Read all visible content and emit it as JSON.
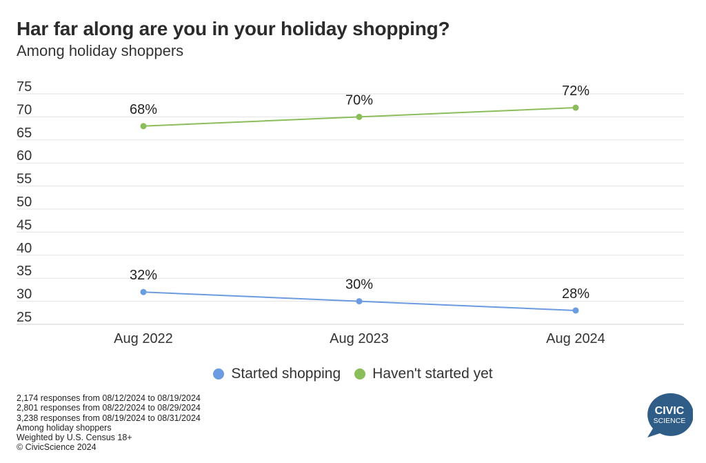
{
  "title": "Har far along are you in your holiday shopping?",
  "subtitle": "Among holiday shoppers",
  "chart_data": {
    "type": "line",
    "categories": [
      "Aug 2022",
      "Aug 2023",
      "Aug 2024"
    ],
    "series": [
      {
        "name": "Started shopping",
        "values": [
          32,
          30,
          28
        ],
        "labels": [
          "32%",
          "30%",
          "28%"
        ],
        "color": "#6b9be0"
      },
      {
        "name": "Haven't started yet",
        "values": [
          68,
          70,
          72
        ],
        "labels": [
          "68%",
          "70%",
          "72%"
        ],
        "color": "#8bbd5a"
      }
    ],
    "yticks": [
      25,
      30,
      35,
      40,
      45,
      50,
      55,
      60,
      65,
      70,
      75
    ],
    "ylim": [
      25,
      75
    ],
    "grid": true,
    "legend_position": "bottom-center"
  },
  "footnotes": [
    "2,174 responses from 08/12/2024 to 08/19/2024",
    "2,801 responses from 08/22/2024 to 08/29/2024",
    "3,238 responses from 08/19/2024 to 08/31/2024",
    "Among holiday shoppers",
    "Weighted by U.S. Census 18+",
    "© CivicScience 2024"
  ],
  "logo": {
    "line1": "CIVIC",
    "line2": "SCIENCE",
    "color": "#2f5d87"
  }
}
